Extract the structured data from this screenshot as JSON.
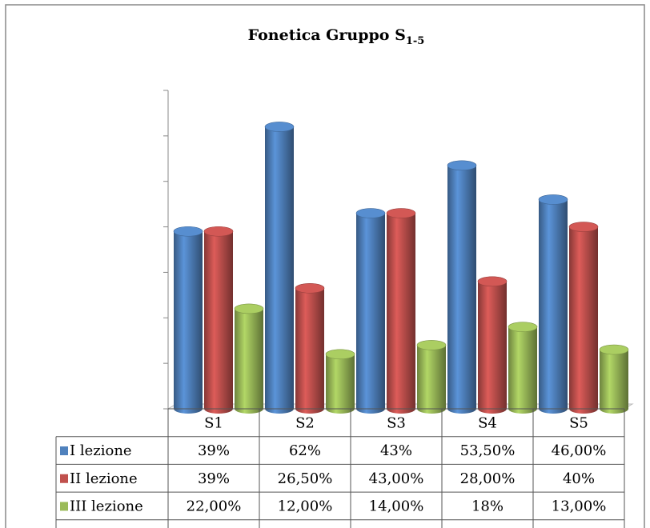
{
  "chart_data": {
    "type": "bar",
    "title": "Fonetica Gruppo S",
    "title_subscript": "1-5",
    "categories": [
      "S1",
      "S2",
      "S3",
      "S4",
      "S5"
    ],
    "series": [
      {
        "name": "I lezione",
        "color": "#4f81bd",
        "values": [
          39,
          62,
          43,
          53.5,
          46
        ],
        "value_labels": [
          "39%",
          "62%",
          "43%",
          "53,50%",
          "46,00%"
        ]
      },
      {
        "name": "II lezione",
        "color": "#c0504d",
        "values": [
          39,
          26.5,
          43,
          28,
          40
        ],
        "value_labels": [
          "39%",
          "26,50%",
          "43,00%",
          "28,00%",
          "40%"
        ]
      },
      {
        "name": "III lezione",
        "color": "#9bbb59",
        "values": [
          22,
          12,
          14,
          18,
          13
        ],
        "value_labels": [
          "22,00%",
          "12,00%",
          "14,00%",
          "18%",
          "13,00%"
        ]
      }
    ],
    "ylim": [
      0,
      70
    ],
    "yticks": [
      0,
      10,
      20,
      30,
      40,
      50,
      60,
      70
    ]
  }
}
